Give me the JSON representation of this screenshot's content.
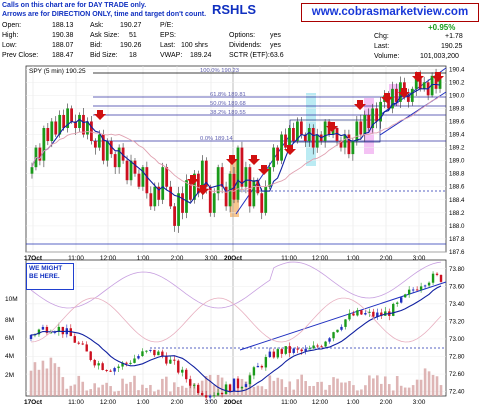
{
  "note": {
    "line1": "Calls on this chart are for DAY TRADE only.",
    "line2": "Arrows are for DIRECTION ONLY, time and target don't count."
  },
  "ticker": "RSHLS",
  "website": "www.cobrasmarketview.com",
  "quote": {
    "open_label": "Open:",
    "open": "188.13",
    "high_label": "High:",
    "high": "190.38",
    "low_label": "Low:",
    "low": "188.07",
    "prevclose_label": "Prev Close:",
    "prevclose": "188.47",
    "ask_label": "Ask:",
    "ask": "190.27",
    "asksize_label": "Ask Size:",
    "asksize": "51",
    "bid_label": "Bid:",
    "bid": "190.26",
    "bidsize_label": "Bid Size:",
    "bidsize": "18",
    "pe_label": "P/E:",
    "pe": "",
    "eps_label": "EPS:",
    "eps": "",
    "last_label": "Last:",
    "last": "100 shrs",
    "vwap_label": "VWAP:",
    "vwap": "189.24",
    "options_label": "Options:",
    "options": "yes",
    "dividends_label": "Dividends:",
    "dividends": "yes",
    "sctr_label": "SCTR (ETF):",
    "sctr": "63.6",
    "pct_change": "+0.95%",
    "chg_label": "Chg:",
    "chg": "+1.78",
    "last2_label": "Last:",
    "last2": "190.25",
    "volume_label": "Volume:",
    "volume": "101,003,200"
  },
  "colors": {
    "up": "#1a9a1a",
    "down": "#cc1020",
    "ma": "#1020a0",
    "fib": "#8080c0",
    "accent": "#1030c0",
    "site_border": "#aa0000"
  },
  "chart_data": [
    {
      "type": "candlestick",
      "title": "SPY (5 min) 190.25",
      "x_tick_labels": [
        "17Oct",
        "11:00",
        "12:00",
        "1:00",
        "2:00",
        "3:00",
        "20Oct",
        "11:00",
        "12:00",
        "1:00",
        "2:00",
        "3:00"
      ],
      "y_tick_labels": [
        "190.4",
        "190.2",
        "190.0",
        "189.8",
        "189.6",
        "189.4",
        "189.2",
        "189.0",
        "188.8",
        "188.6",
        "188.4",
        "188.2",
        "188.0",
        "187.8",
        "187.6"
      ],
      "ylim": [
        187.6,
        190.45
      ],
      "fib_levels": [
        {
          "label": "100.0%",
          "value": "190.23"
        },
        {
          "label": "61.8%",
          "value": "189.81"
        },
        {
          "label": "50.0%",
          "value": "189.68"
        },
        {
          "label": "38.2%",
          "value": "189.55"
        },
        {
          "label": "0.0%",
          "value": "189.14"
        }
      ],
      "series_close": [
        188.9,
        189.2,
        189.0,
        189.5,
        189.3,
        189.6,
        189.4,
        189.7,
        189.5,
        189.8,
        189.6,
        189.5,
        189.7,
        189.4,
        189.6,
        189.3,
        189.2,
        189.4,
        189.0,
        189.3,
        189.1,
        188.9,
        189.2,
        189.0,
        188.7,
        189.0,
        188.8,
        188.6,
        188.9,
        188.5,
        188.3,
        188.6,
        188.4,
        188.9,
        188.6,
        188.3,
        188.0,
        188.5,
        188.2,
        188.7,
        188.4,
        188.8,
        188.5,
        189.0,
        188.6,
        188.2,
        188.5,
        188.9,
        188.6,
        188.3,
        188.8,
        188.4,
        189.2,
        188.6,
        188.9,
        188.3,
        188.7,
        188.5,
        188.2,
        188.6,
        188.9,
        189.2,
        189.0,
        189.4,
        189.2,
        189.5,
        189.3,
        189.6,
        189.4,
        189.3,
        189.5,
        189.2,
        189.4,
        189.3,
        189.6,
        189.4,
        189.5,
        189.3,
        189.2,
        189.4,
        189.1,
        189.3,
        189.6,
        189.4,
        189.7,
        189.5,
        189.8,
        189.6,
        189.9,
        190.0,
        189.8,
        190.1,
        189.9,
        190.2,
        190.0,
        189.9,
        190.1,
        190.3,
        190.1,
        190.2,
        190.0,
        190.3,
        190.1,
        190.25
      ],
      "markers": [
        {
          "direction": "down"
        },
        {
          "direction": "down"
        },
        {
          "direction": "down"
        },
        {
          "direction": "down"
        },
        {
          "direction": "down"
        },
        {
          "direction": "down"
        },
        {
          "direction": "down"
        },
        {
          "direction": "down"
        },
        {
          "direction": "down"
        },
        {
          "direction": "down"
        },
        {
          "direction": "down"
        },
        {
          "direction": "down"
        },
        {
          "direction": "down"
        }
      ]
    },
    {
      "type": "candlestick",
      "annotation": "WE MIGHT BE HERE.",
      "x_tick_labels": [
        "17Oct",
        "11:00",
        "12:00",
        "1:00",
        "2:00",
        "3:00",
        "20Oct",
        "11:00",
        "12:00",
        "1:00",
        "2:00",
        "3:00"
      ],
      "y_tick_labels": [
        "73.80",
        "73.60",
        "73.40",
        "73.20",
        "73.00",
        "72.80",
        "72.60",
        "72.40"
      ],
      "volume_tick_labels": [
        "10M",
        "8M",
        "6M",
        "4M",
        "2M"
      ],
      "ylim": [
        72.35,
        73.9
      ]
    }
  ]
}
